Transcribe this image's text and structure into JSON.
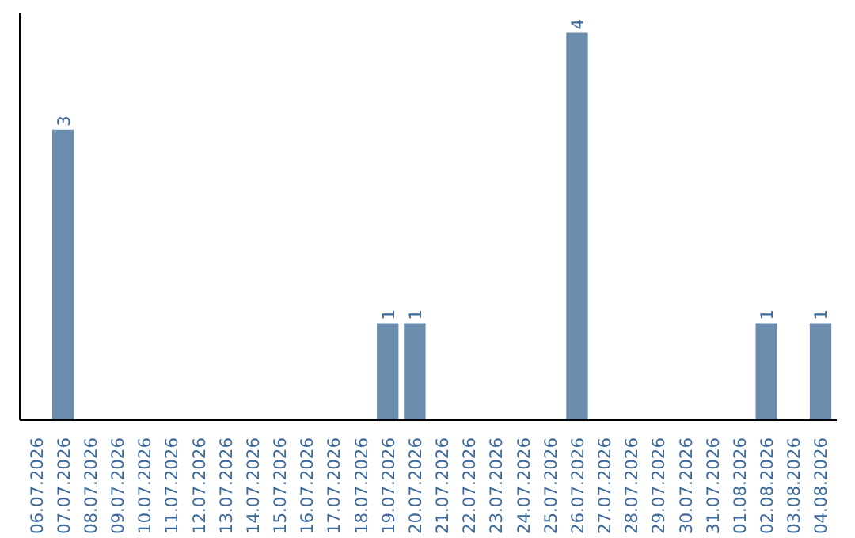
{
  "chart_data": {
    "type": "bar",
    "categories": [
      "06.07.2026",
      "07.07.2026",
      "08.07.2026",
      "09.07.2026",
      "10.07.2026",
      "11.07.2026",
      "12.07.2026",
      "13.07.2026",
      "14.07.2026",
      "15.07.2026",
      "16.07.2026",
      "17.07.2026",
      "18.07.2026",
      "19.07.2026",
      "20.07.2026",
      "21.07.2026",
      "22.07.2026",
      "23.07.2026",
      "24.07.2026",
      "25.07.2026",
      "26.07.2026",
      "27.07.2026",
      "28.07.2026",
      "29.07.2026",
      "30.07.2026",
      "31.07.2026",
      "01.08.2026",
      "02.08.2026",
      "03.08.2026",
      "04.08.2026"
    ],
    "values": [
      0,
      3,
      0,
      0,
      0,
      0,
      0,
      0,
      0,
      0,
      0,
      0,
      0,
      1,
      1,
      0,
      0,
      0,
      0,
      0,
      4,
      0,
      0,
      0,
      0,
      0,
      0,
      1,
      0,
      1
    ],
    "value_labels": [
      null,
      "3",
      null,
      null,
      null,
      null,
      null,
      null,
      null,
      null,
      null,
      null,
      null,
      "1",
      "1",
      null,
      null,
      null,
      null,
      null,
      "4",
      null,
      null,
      null,
      null,
      null,
      null,
      "1",
      null,
      "1"
    ],
    "color": "#6b8cad",
    "ylim": [
      0,
      4.2
    ],
    "tick_labels": "x"
  }
}
